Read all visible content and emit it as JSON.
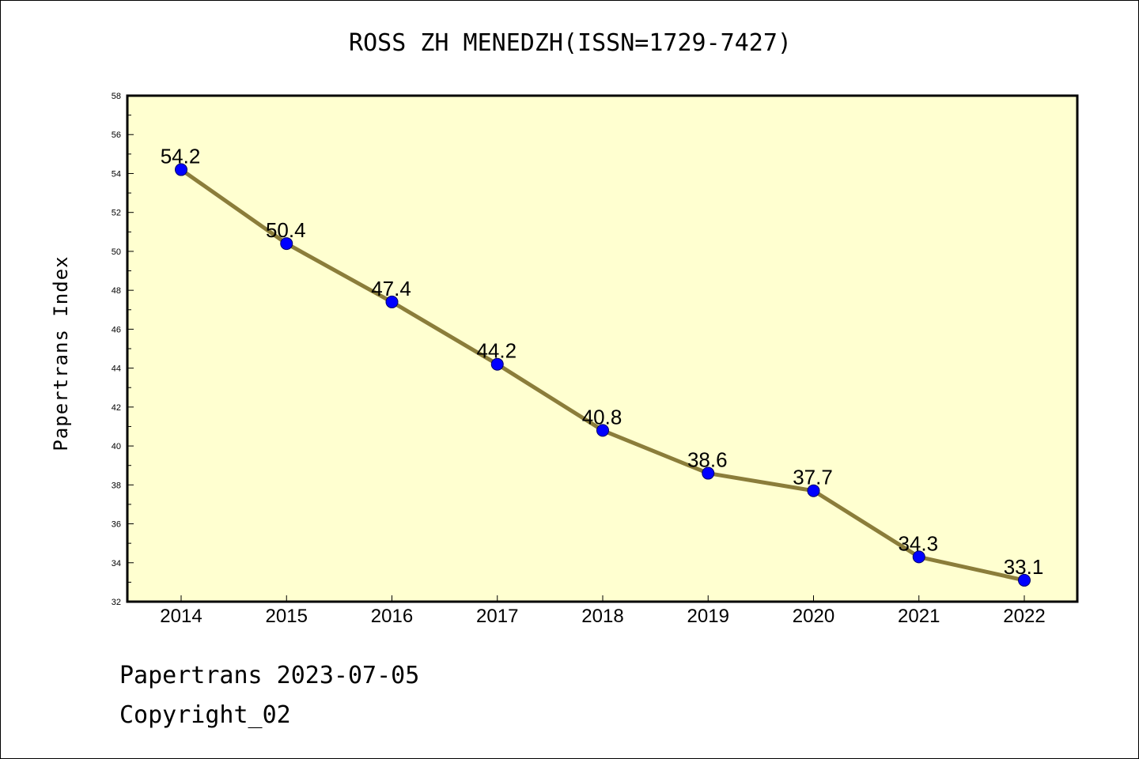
{
  "chart_data": {
    "type": "line",
    "title": "ROSS ZH MENEDZH(ISSN=1729-7427)",
    "xlabel": "",
    "ylabel": "Papertrans Index",
    "categories": [
      "2014",
      "2015",
      "2016",
      "2017",
      "2018",
      "2019",
      "2020",
      "2021",
      "2022"
    ],
    "series": [
      {
        "values": [
          54.2,
          50.4,
          47.4,
          44.2,
          40.8,
          38.6,
          37.7,
          34.3,
          33.1
        ],
        "data_labels": [
          "54.2",
          "50.4",
          "47.4",
          "44.2",
          "40.8",
          "38.6",
          "37.7",
          "34.3",
          "33.1"
        ]
      }
    ],
    "ylim": [
      32,
      58
    ],
    "y_ticks": [
      32,
      34,
      36,
      38,
      40,
      42,
      44,
      46,
      48,
      50,
      52,
      54,
      56,
      58
    ],
    "grid": false,
    "legend": "none",
    "colors": {
      "plot_background": "#ffffd0",
      "line": "#8b7d3a",
      "marker": "#0000ff"
    }
  },
  "footer": {
    "date_line": "Papertrans 2023-07-05",
    "copyright": "Copyright_02"
  }
}
